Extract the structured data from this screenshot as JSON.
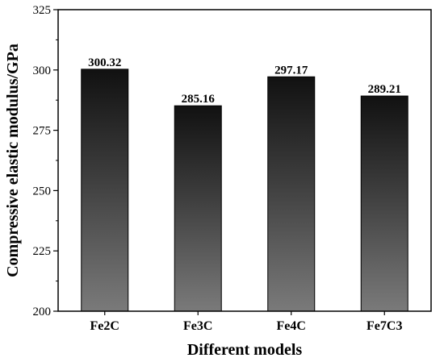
{
  "chart_data": {
    "type": "bar",
    "categories": [
      "Fe2C",
      "Fe3C",
      "Fe4C",
      "Fe7C3"
    ],
    "values": [
      300.32,
      285.16,
      297.17,
      289.21
    ],
    "data_labels": [
      "300.32",
      "285.16",
      "297.17",
      "289.21"
    ],
    "title": "",
    "xlabel": "Different models",
    "ylabel": "Compressive elastic modulus/GPa",
    "ylim": [
      200,
      325
    ],
    "yticks": [
      200,
      225,
      250,
      275,
      300,
      325
    ],
    "ytick_labels": [
      "200",
      "225",
      "250",
      "275",
      "300",
      "325"
    ],
    "grid": false,
    "legend": "none",
    "bar_gradient": [
      "#111111",
      "#7a7a7a"
    ]
  }
}
